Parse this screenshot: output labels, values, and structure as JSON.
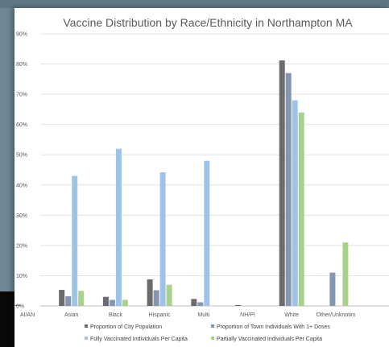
{
  "chart_data": {
    "type": "bar",
    "title": "Vaccine Distribution by Race/Ethnicity in Northampton MA",
    "xlabel": "",
    "ylabel": "",
    "ylim": [
      0,
      90
    ],
    "y_ticks": [
      "0%",
      "10%",
      "20%",
      "30%",
      "40%",
      "50%",
      "60%",
      "70%",
      "80%",
      "90%"
    ],
    "grid": true,
    "legend_position": "bottom",
    "categories": [
      "AI/AN",
      "Asian",
      "Black",
      "Hispanic",
      "Multi",
      "NH/PI",
      "White",
      "Other/Unknown"
    ],
    "series": [
      {
        "name": "Proportion of City Population",
        "color": "#6b6b6b",
        "values": [
          0.3,
          5.3,
          3.0,
          8.8,
          2.3,
          0.3,
          81.2,
          0
        ]
      },
      {
        "name": "Proportion of Town Individuals With 1+ Doses",
        "color": "#8496b0",
        "values": [
          0,
          3.2,
          2.0,
          5.2,
          1.2,
          0,
          77.0,
          11.0
        ]
      },
      {
        "name": "Fully Vaccinated Individuals Per Capita",
        "color": "#9dc3e6",
        "values": [
          0,
          43.0,
          52.0,
          44.2,
          48.0,
          0,
          68.0,
          0
        ]
      },
      {
        "name": "Partially Vaccinated Individuals Per Capita",
        "color": "#a9d18e",
        "values": [
          0,
          5.0,
          2.0,
          7.0,
          0,
          0,
          64.0,
          21.0
        ]
      }
    ]
  }
}
